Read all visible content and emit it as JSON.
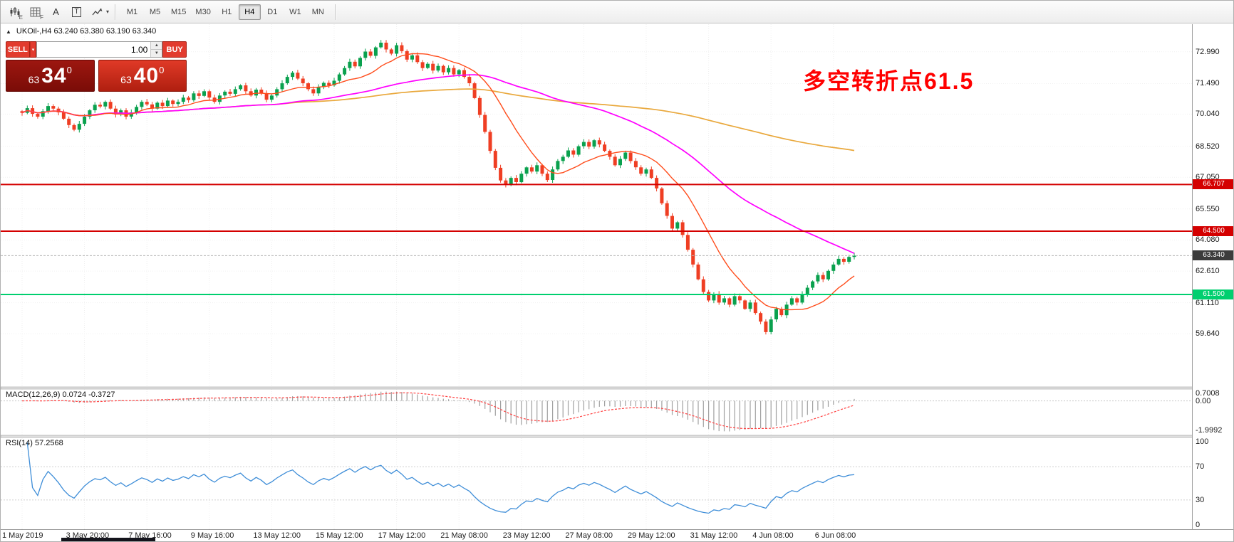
{
  "glyphs": {
    "panel_toggle": "▲",
    "caret_down": "▾",
    "spinner_up": "▲",
    "spinner_down": "▼"
  },
  "colors": {
    "candle_up": "#0aa14e",
    "candle_down": "#ef3e23",
    "ma_slow": "#e9a83c",
    "ma_mid": "#ff00ff",
    "ma_fast": "#ff4d1c",
    "macd_hist": "#a0a0a0",
    "macd_signal": "#ff4040",
    "rsi": "#3f8ed8",
    "bid_tag": "#3c3c3c",
    "annotation": "#ff0000"
  },
  "toolbar": {
    "icons": [
      {
        "name": "candlestick-tool-icon",
        "sub": "E"
      },
      {
        "name": "grid-tool-icon",
        "sub": "F"
      },
      {
        "name": "label-a-tool-icon",
        "label": "A"
      },
      {
        "name": "textbox-tool-icon",
        "label": "T"
      },
      {
        "name": "cursor-tool-icon",
        "sub": ""
      }
    ],
    "timeframes": [
      "M1",
      "M5",
      "M15",
      "M30",
      "H1",
      "H4",
      "D1",
      "W1",
      "MN"
    ],
    "active_timeframe": "H4"
  },
  "trade_panel": {
    "sell_label": "SELL",
    "buy_label": "BUY",
    "volume": "1.00",
    "sell_price": {
      "small": "63",
      "big": "34",
      "sup": "0"
    },
    "buy_price": {
      "small": "63",
      "big": "40",
      "sup": "0"
    }
  },
  "chart": {
    "symbol_line": "UKOil-,H4  63.240 63.380 63.190 63.340",
    "annotation": {
      "text": "多空转折点61.5",
      "color": "#ff0000"
    },
    "price_axis": [
      "72.990",
      "71.490",
      "70.040",
      "68.520",
      "67.050",
      "65.550",
      "64.080",
      "62.610",
      "61.110",
      "59.640"
    ],
    "time_axis": [
      "1 May 2019",
      "3 May 20:00",
      "7 May 16:00",
      "9 May 16:00",
      "13 May 12:00",
      "15 May 12:00",
      "17 May 12:00",
      "21 May 08:00",
      "23 May 12:00",
      "27 May 08:00",
      "29 May 12:00",
      "31 May 12:00",
      "4 Jun 08:00",
      "6 Jun 08:00"
    ],
    "hlines": [
      {
        "name": "resistance-line-66707",
        "price": 66.707,
        "label": "66.707",
        "color": "#d40000"
      },
      {
        "name": "resistance-line-64500",
        "price": 64.5,
        "label": "64.500",
        "color": "#d40000"
      },
      {
        "name": "support-line-61500",
        "price": 61.5,
        "label": "61.500",
        "color": "#00cf6f"
      }
    ],
    "bid": {
      "price": 63.34,
      "label": "63.340"
    },
    "candles_close": [
      70.1,
      70.32,
      70.05,
      69.92,
      70.18,
      70.42,
      70.3,
      70.12,
      69.82,
      69.52,
      69.3,
      69.58,
      69.92,
      70.22,
      70.48,
      70.4,
      70.62,
      70.3,
      70.02,
      70.22,
      69.92,
      70.12,
      70.38,
      70.62,
      70.5,
      70.3,
      70.58,
      70.42,
      70.68,
      70.52,
      70.62,
      70.82,
      70.7,
      71.02,
      70.9,
      71.12,
      70.82,
      70.62,
      70.92,
      71.1,
      71.0,
      71.22,
      71.4,
      71.12,
      70.92,
      71.2,
      71.02,
      70.72,
      70.92,
      71.22,
      71.5,
      71.8,
      72.0,
      71.72,
      71.5,
      71.22,
      71.02,
      71.32,
      71.52,
      71.4,
      71.62,
      71.92,
      72.22,
      72.52,
      72.3,
      72.7,
      73.0,
      72.8,
      73.2,
      73.42,
      73.1,
      72.9,
      73.3,
      73.02,
      72.62,
      72.82,
      72.5,
      72.22,
      72.42,
      72.1,
      72.32,
      72.02,
      72.22,
      71.92,
      72.12,
      71.8,
      71.5,
      70.8,
      70.0,
      69.2,
      68.3,
      67.5,
      66.9,
      66.7,
      67.02,
      66.82,
      67.22,
      67.52,
      67.32,
      67.62,
      67.22,
      66.92,
      67.42,
      67.82,
      68.02,
      68.32,
      68.12,
      68.52,
      68.72,
      68.5,
      68.8,
      68.6,
      68.3,
      68.02,
      67.62,
      67.92,
      68.22,
      67.82,
      67.52,
      67.22,
      67.42,
      67.02,
      66.52,
      65.82,
      65.22,
      64.62,
      64.92,
      64.32,
      63.62,
      62.92,
      62.22,
      61.62,
      61.22,
      61.52,
      61.12,
      61.32,
      61.02,
      61.42,
      61.22,
      60.82,
      61.12,
      60.62,
      60.22,
      59.72,
      60.32,
      60.82,
      60.52,
      61.02,
      61.32,
      61.12,
      61.52,
      61.82,
      62.12,
      62.42,
      62.22,
      62.62,
      62.92,
      63.19,
      63.05,
      63.28,
      63.34
    ]
  },
  "macd": {
    "label": "MACD(12,26,9) 0.0724 -0.3727",
    "fast": 12,
    "slow": 26,
    "signal": 9,
    "axis": [
      {
        "label": "0.7008",
        "v": 0.7008
      },
      {
        "label": "0.00",
        "v": 0
      },
      {
        "label": "-1.9992",
        "v": -1.9992
      }
    ]
  },
  "rsi": {
    "label": "RSI(14) 57.2568",
    "period": 14,
    "levels": [
      {
        "label": "100",
        "v": 100,
        "dashed": false
      },
      {
        "label": "70",
        "v": 70,
        "dashed": true
      },
      {
        "label": "30",
        "v": 30,
        "dashed": true
      },
      {
        "label": "0",
        "v": 0,
        "dashed": false
      }
    ]
  }
}
